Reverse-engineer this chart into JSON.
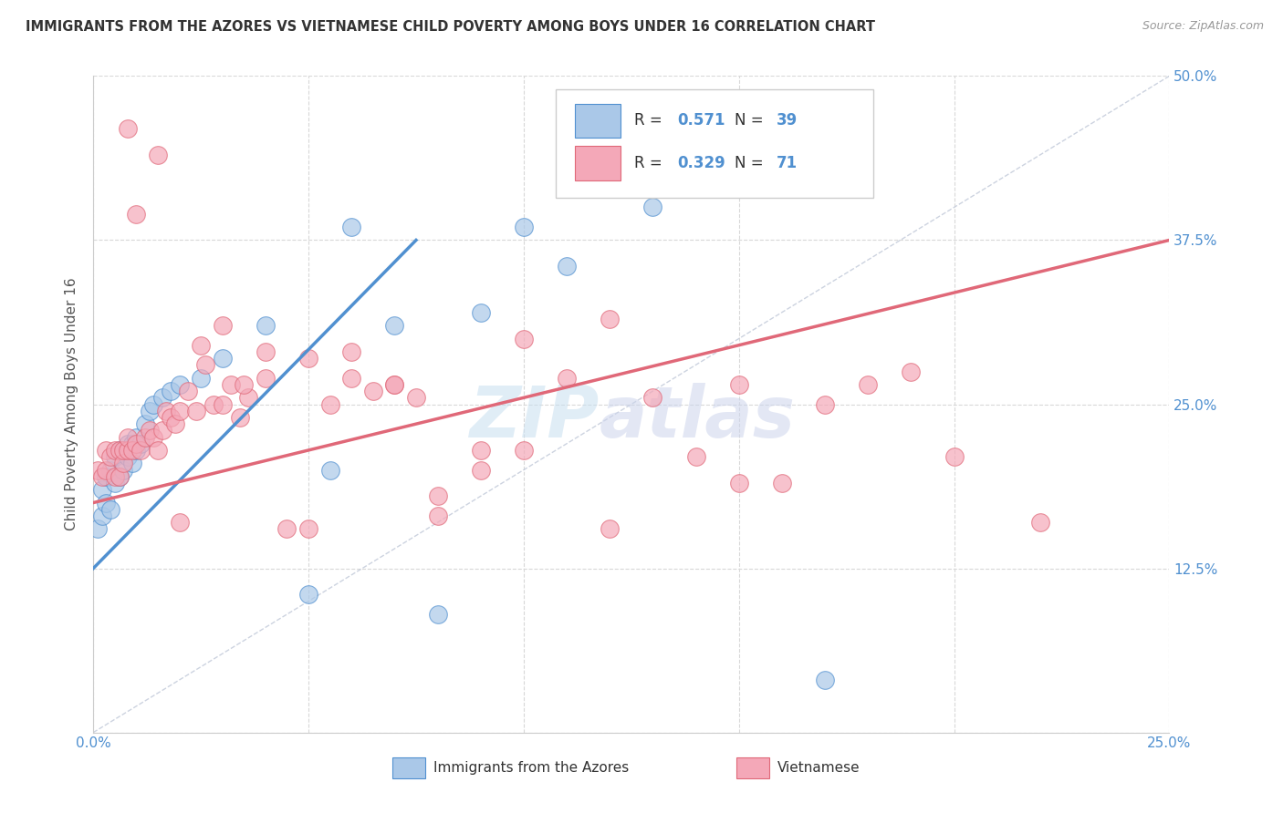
{
  "title": "IMMIGRANTS FROM THE AZORES VS VIETNAMESE CHILD POVERTY AMONG BOYS UNDER 16 CORRELATION CHART",
  "source": "Source: ZipAtlas.com",
  "ylabel": "Child Poverty Among Boys Under 16",
  "xlim": [
    0.0,
    0.25
  ],
  "ylim": [
    0.0,
    0.5
  ],
  "background_color": "#ffffff",
  "grid_color": "#d8d8d8",
  "legend_R1": "0.571",
  "legend_N1": "39",
  "legend_R2": "0.329",
  "legend_N2": "71",
  "color_azores": "#aac8e8",
  "color_vietnamese": "#f4a8b8",
  "line_color_azores": "#5090d0",
  "line_color_vietnamese": "#e06878",
  "line_color_diagonal": "#c0c8d8",
  "azores_line_x0": 0.0,
  "azores_line_y0": 0.125,
  "azores_line_x1": 0.075,
  "azores_line_y1": 0.375,
  "vietnamese_line_x0": 0.0,
  "vietnamese_line_y0": 0.175,
  "vietnamese_line_x1": 0.25,
  "vietnamese_line_y1": 0.375,
  "azores_x": [
    0.001,
    0.002,
    0.002,
    0.003,
    0.003,
    0.004,
    0.004,
    0.005,
    0.005,
    0.006,
    0.006,
    0.007,
    0.007,
    0.008,
    0.008,
    0.009,
    0.009,
    0.01,
    0.01,
    0.011,
    0.012,
    0.013,
    0.014,
    0.016,
    0.018,
    0.02,
    0.025,
    0.03,
    0.04,
    0.05,
    0.055,
    0.06,
    0.07,
    0.08,
    0.09,
    0.1,
    0.11,
    0.13,
    0.17
  ],
  "azores_y": [
    0.155,
    0.165,
    0.185,
    0.175,
    0.195,
    0.17,
    0.2,
    0.19,
    0.21,
    0.195,
    0.215,
    0.2,
    0.215,
    0.21,
    0.22,
    0.205,
    0.22,
    0.215,
    0.225,
    0.22,
    0.235,
    0.245,
    0.25,
    0.255,
    0.26,
    0.265,
    0.27,
    0.285,
    0.31,
    0.105,
    0.2,
    0.385,
    0.31,
    0.09,
    0.32,
    0.385,
    0.355,
    0.4,
    0.04
  ],
  "vietnamese_x": [
    0.001,
    0.002,
    0.003,
    0.003,
    0.004,
    0.005,
    0.005,
    0.006,
    0.006,
    0.007,
    0.007,
    0.008,
    0.008,
    0.009,
    0.01,
    0.011,
    0.012,
    0.013,
    0.014,
    0.015,
    0.016,
    0.017,
    0.018,
    0.019,
    0.02,
    0.022,
    0.024,
    0.026,
    0.028,
    0.03,
    0.032,
    0.034,
    0.036,
    0.04,
    0.045,
    0.05,
    0.055,
    0.06,
    0.065,
    0.07,
    0.075,
    0.08,
    0.09,
    0.1,
    0.11,
    0.12,
    0.13,
    0.14,
    0.15,
    0.16,
    0.17,
    0.18,
    0.19,
    0.2,
    0.008,
    0.01,
    0.015,
    0.02,
    0.025,
    0.03,
    0.035,
    0.04,
    0.05,
    0.06,
    0.07,
    0.08,
    0.09,
    0.1,
    0.12,
    0.15,
    0.22
  ],
  "vietnamese_y": [
    0.2,
    0.195,
    0.2,
    0.215,
    0.21,
    0.195,
    0.215,
    0.195,
    0.215,
    0.205,
    0.215,
    0.215,
    0.225,
    0.215,
    0.22,
    0.215,
    0.225,
    0.23,
    0.225,
    0.215,
    0.23,
    0.245,
    0.24,
    0.235,
    0.245,
    0.26,
    0.245,
    0.28,
    0.25,
    0.25,
    0.265,
    0.24,
    0.255,
    0.27,
    0.155,
    0.155,
    0.25,
    0.27,
    0.26,
    0.265,
    0.255,
    0.18,
    0.215,
    0.3,
    0.27,
    0.155,
    0.255,
    0.21,
    0.265,
    0.19,
    0.25,
    0.265,
    0.275,
    0.21,
    0.46,
    0.395,
    0.44,
    0.16,
    0.295,
    0.31,
    0.265,
    0.29,
    0.285,
    0.29,
    0.265,
    0.165,
    0.2,
    0.215,
    0.315,
    0.19,
    0.16
  ]
}
